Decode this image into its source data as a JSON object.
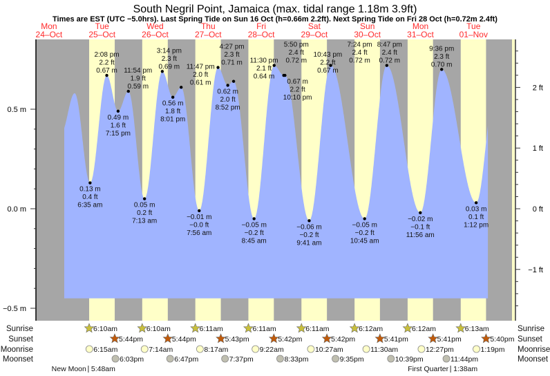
{
  "header": {
    "title": "South Negril Point, Jamaica (max. tidal range 1.18m 3.9ft)",
    "subtitle": "Times are EST (UTC −5.0hrs). Last Spring Tide on Sun 16 Oct (h=0.66m 2.2ft). Next Spring Tide on Fri 28 Oct (h=0.72m 2.4ft)"
  },
  "colors": {
    "water": "#a0b4ff",
    "day": "#ffffc8",
    "night": "#a6a6a6",
    "day_label": "#ff2a2a",
    "sunrise": "#c8bf3c",
    "sunset": "#c05a0a",
    "moonrise": "#ffffc8",
    "moonset": "#c0bfb0"
  },
  "chart_data": {
    "type": "area",
    "title": "South Negril Point, Jamaica (max. tidal range 1.18m 3.9ft)",
    "ylabel_left": "m",
    "ylabel_right": "ft",
    "ylim_m": [
      -0.55,
      0.88
    ],
    "left_ticks": [
      "0.5 m",
      "0.0 m",
      "−0.5 m"
    ],
    "left_tick_values": [
      0.5,
      0.0,
      -0.5
    ],
    "right_ticks": [
      "2 ft",
      "1 ft",
      "0 ft",
      "−1 ft"
    ],
    "right_tick_values": [
      2,
      1,
      0,
      -1
    ],
    "days": [
      {
        "dow": "Mon",
        "date": "24–Oct"
      },
      {
        "dow": "Tue",
        "date": "25–Oct"
      },
      {
        "dow": "Wed",
        "date": "26–Oct"
      },
      {
        "dow": "Thu",
        "date": "27–Oct"
      },
      {
        "dow": "Fri",
        "date": "28–Oct"
      },
      {
        "dow": "Sat",
        "date": "29–Oct"
      },
      {
        "dow": "Sun",
        "date": "30–Oct"
      },
      {
        "dow": "Mon",
        "date": "31–Oct"
      },
      {
        "dow": "Tue",
        "date": "01–Nov"
      }
    ],
    "extremes": [
      {
        "day": 1,
        "time": "6:35 am",
        "m": "0.13 m",
        "ft": "0.4 ft",
        "v": 0.13,
        "type": "low"
      },
      {
        "day": 1,
        "time": "2:08 pm",
        "m": "0.67 m",
        "ft": "2.2 ft",
        "v": 0.67,
        "type": "high"
      },
      {
        "day": 1,
        "time": "7:15 pm",
        "m": "0.49 m",
        "ft": "1.6 ft",
        "v": 0.49,
        "type": "low"
      },
      {
        "day": 1,
        "time": "11:54 pm",
        "m": "0.59 m",
        "ft": "1.9 ft",
        "v": 0.59,
        "type": "high"
      },
      {
        "day": 2,
        "time": "7:13 am",
        "m": "0.05 m",
        "ft": "0.2 ft",
        "v": 0.05,
        "type": "low"
      },
      {
        "day": 2,
        "time": "3:14 pm",
        "m": "0.69 m",
        "ft": "2.3 ft",
        "v": 0.69,
        "type": "high"
      },
      {
        "day": 2,
        "time": "8:01 pm",
        "m": "0.56 m",
        "ft": "1.8 ft",
        "v": 0.56,
        "type": "low"
      },
      {
        "day": 2,
        "time": "11:47 pm",
        "m": "0.61 m",
        "ft": "2.0 ft",
        "v": 0.61,
        "type": "high"
      },
      {
        "day": 3,
        "time": "7:56 am",
        "m": "−0.01 m",
        "ft": "−0.0 ft",
        "v": -0.01,
        "type": "low"
      },
      {
        "day": 3,
        "time": "4:27 pm",
        "m": "0.71 m",
        "ft": "2.3 ft",
        "v": 0.71,
        "type": "high"
      },
      {
        "day": 3,
        "time": "8:52 pm",
        "m": "0.62 m",
        "ft": "2.0 ft",
        "v": 0.62,
        "type": "low"
      },
      {
        "day": 3,
        "time": "11:30 pm",
        "m": "0.64 m",
        "ft": "2.1 ft",
        "v": 0.64,
        "type": "high"
      },
      {
        "day": 4,
        "time": "8:45 am",
        "m": "−0.05 m",
        "ft": "−0.2 ft",
        "v": -0.05,
        "type": "low"
      },
      {
        "day": 4,
        "time": "5:50 pm",
        "m": "0.72 m",
        "ft": "2.4 ft",
        "v": 0.72,
        "type": "high"
      },
      {
        "day": 4,
        "time": "10:10 pm",
        "m": "0.67 m",
        "ft": "2.2 ft",
        "v": 0.67,
        "type": "low"
      },
      {
        "day": 4,
        "time": "10:43 pm",
        "m": "0.67 m",
        "ft": "2.2 ft",
        "v": 0.67,
        "type": "high"
      },
      {
        "day": 5,
        "time": "9:41 am",
        "m": "−0.06 m",
        "ft": "−0.2 ft",
        "v": -0.06,
        "type": "low"
      },
      {
        "day": 5,
        "time": "7:24 pm",
        "m": "0.72 m",
        "ft": "2.4 ft",
        "v": 0.72,
        "type": "high"
      },
      {
        "day": 6,
        "time": "10:45 am",
        "m": "−0.05 m",
        "ft": "−0.2 ft",
        "v": -0.05,
        "type": "low"
      },
      {
        "day": 6,
        "time": "8:47 pm",
        "m": "0.72 m",
        "ft": "2.4 ft",
        "v": 0.72,
        "type": "high"
      },
      {
        "day": 7,
        "time": "11:56 am",
        "m": "−0.02 m",
        "ft": "−0.1 ft",
        "v": -0.02,
        "type": "low"
      },
      {
        "day": 7,
        "time": "9:36 pm",
        "m": "0.70 m",
        "ft": "2.3 ft",
        "v": 0.7,
        "type": "high"
      },
      {
        "day": 8,
        "time": "1:12 pm",
        "m": "0.03 m",
        "ft": "0.1 ft",
        "v": 0.03,
        "type": "low"
      }
    ],
    "unlabeled_curve_points": [
      {
        "day": 0,
        "time": "5:30 pm",
        "v": 0.38
      },
      {
        "day": 0,
        "time": "11:36 pm",
        "v": 0.58
      },
      {
        "day": 8,
        "time": "10:00 pm",
        "v": 0.62
      }
    ],
    "curve_range_hours": [
      18.9,
      210.5
    ],
    "curve_floor_m": -0.45
  },
  "astro": {
    "row_labels": {
      "sunrise": "Sunrise",
      "sunset": "Sunset",
      "moonrise": "Moonrise",
      "moonset": "Moonset"
    },
    "sunrise": [
      {
        "day": 1,
        "time": "6:10am"
      },
      {
        "day": 2,
        "time": "6:10am"
      },
      {
        "day": 3,
        "time": "6:11am"
      },
      {
        "day": 4,
        "time": "6:11am"
      },
      {
        "day": 5,
        "time": "6:11am"
      },
      {
        "day": 6,
        "time": "6:12am"
      },
      {
        "day": 7,
        "time": "6:12am"
      },
      {
        "day": 8,
        "time": "6:13am"
      }
    ],
    "sunset": [
      {
        "day": 1,
        "time": "5:44pm"
      },
      {
        "day": 2,
        "time": "5:44pm"
      },
      {
        "day": 3,
        "time": "5:43pm"
      },
      {
        "day": 4,
        "time": "5:42pm"
      },
      {
        "day": 5,
        "time": "5:42pm"
      },
      {
        "day": 6,
        "time": "5:41pm"
      },
      {
        "day": 7,
        "time": "5:41pm"
      },
      {
        "day": 8,
        "time": "5:40pm"
      }
    ],
    "moonrise": [
      {
        "day": 1,
        "time": "6:15am"
      },
      {
        "day": 2,
        "time": "7:14am"
      },
      {
        "day": 3,
        "time": "8:17am"
      },
      {
        "day": 4,
        "time": "9:22am"
      },
      {
        "day": 5,
        "time": "10:27am"
      },
      {
        "day": 6,
        "time": "11:30am"
      },
      {
        "day": 7,
        "time": "12:27pm"
      },
      {
        "day": 8,
        "time": "1:19pm"
      }
    ],
    "moonset": [
      {
        "day": 1,
        "time": "6:03pm"
      },
      {
        "day": 2,
        "time": "6:47pm"
      },
      {
        "day": 3,
        "time": "7:37pm"
      },
      {
        "day": 4,
        "time": "8:33pm"
      },
      {
        "day": 5,
        "time": "9:35pm"
      },
      {
        "day": 6,
        "time": "10:39pm"
      },
      {
        "day": 7,
        "time": "11:44pm"
      }
    ],
    "phases": [
      {
        "day": 1,
        "time": "5:48am",
        "label": "New Moon"
      },
      {
        "day": 8,
        "time": "1:38am",
        "label": "First Quarter"
      }
    ]
  }
}
